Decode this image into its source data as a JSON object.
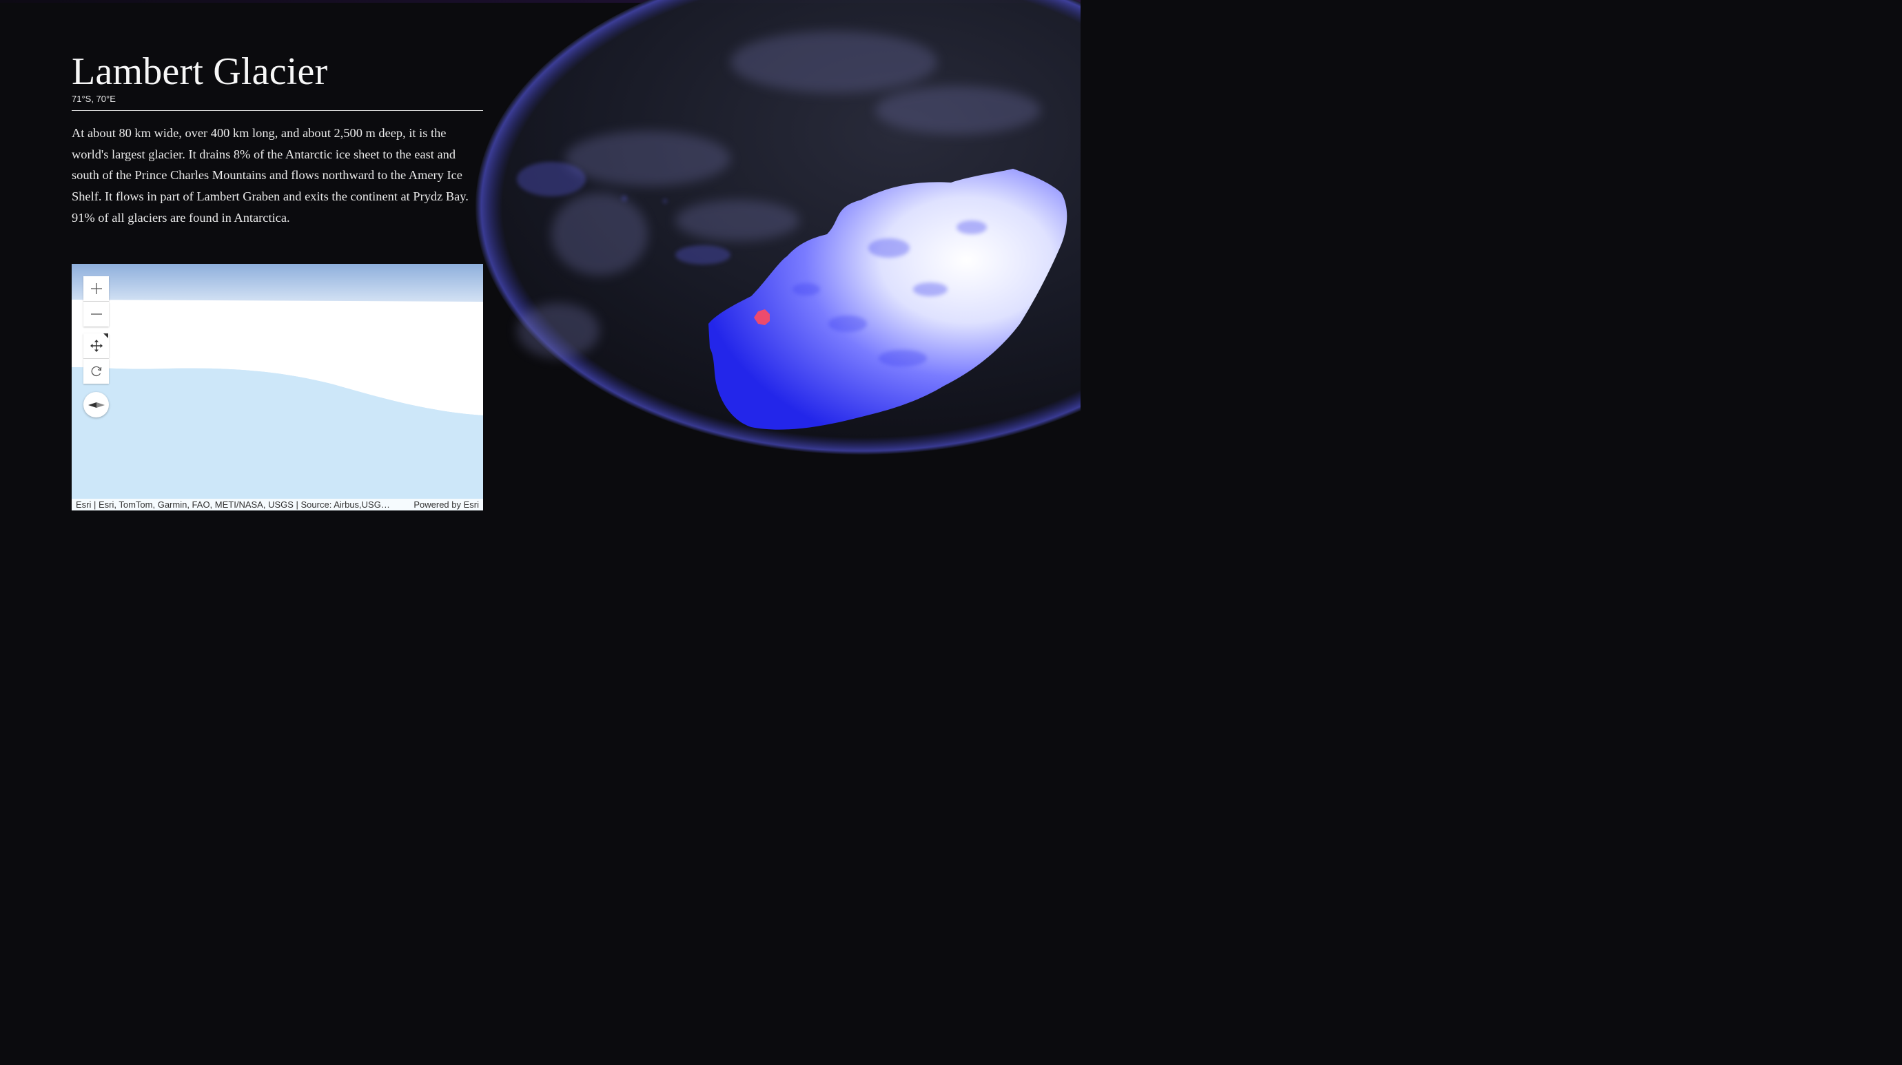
{
  "story": {
    "title": "Lambert Glacier",
    "coordinates": "71°S, 70°E",
    "description": "At about 80 km wide, over 400 km long, and about 2,500 m deep, it is the world's largest glacier. It drains 8% of the Antarctic ice sheet to the east and south of the Prince Charles Mountains and flows northward to the Amery Ice Shelf. It flows in part of Lambert Graben and exits the continent at Prydz Bay. 91% of all glaciers are found in Antarctica."
  },
  "minimap": {
    "controls": [
      {
        "name": "zoom-in",
        "icon": "plus-icon"
      },
      {
        "name": "zoom-out",
        "icon": "minus-icon"
      },
      {
        "name": "pan",
        "icon": "move-arrows-icon"
      },
      {
        "name": "rotate",
        "icon": "rotate-icon"
      },
      {
        "name": "compass",
        "icon": "compass-icon"
      }
    ],
    "attribution": "Esri | Esri, TomTom, Garmin, FAO, METI/NASA, USGS | Source: Airbus,USG…",
    "powered_by": "Powered by Esri"
  },
  "globe": {
    "marker_color": "#ff4a5e",
    "ice_color": "#2a2cf0"
  }
}
